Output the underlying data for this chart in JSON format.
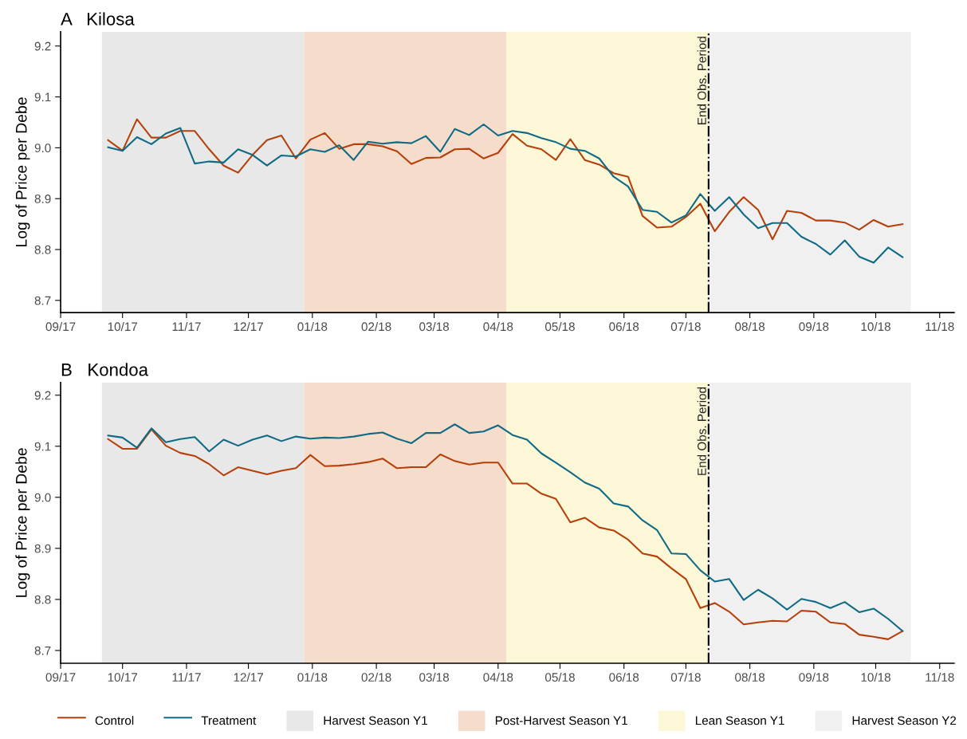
{
  "chart_data": [
    {
      "type": "line",
      "title": "A   Kilosa",
      "ylabel": "Log of Price per Debe",
      "x": [
        "2017-09-24",
        "2017-10-01",
        "2017-10-08",
        "2017-10-15",
        "2017-10-22",
        "2017-10-29",
        "2017-11-05",
        "2017-11-12",
        "2017-11-19",
        "2017-11-26",
        "2017-12-03",
        "2017-12-10",
        "2017-12-17",
        "2017-12-24",
        "2017-12-31",
        "2018-01-07",
        "2018-01-14",
        "2018-01-21",
        "2018-01-28",
        "2018-02-04",
        "2018-02-11",
        "2018-02-18",
        "2018-02-25",
        "2018-03-04",
        "2018-03-11",
        "2018-03-18",
        "2018-03-25",
        "2018-04-01",
        "2018-04-08",
        "2018-04-15",
        "2018-04-22",
        "2018-04-29",
        "2018-05-06",
        "2018-05-13",
        "2018-05-20",
        "2018-05-27",
        "2018-06-03",
        "2018-06-10",
        "2018-06-17",
        "2018-06-24",
        "2018-07-01",
        "2018-07-08",
        "2018-07-15",
        "2018-07-22",
        "2018-07-29",
        "2018-08-05",
        "2018-08-12",
        "2018-08-19",
        "2018-08-26",
        "2018-09-02",
        "2018-09-09",
        "2018-09-16",
        "2018-09-23",
        "2018-09-30",
        "2018-10-07",
        "2018-10-14"
      ],
      "series": [
        {
          "color": "#b5400b",
          "values": [
            9.015,
            8.994,
            9.056,
            9.02,
            9.02,
            9.033,
            9.033,
            8.997,
            8.965,
            8.951,
            8.986,
            9.015,
            9.024,
            8.979,
            9.016,
            9.029,
            8.998,
            9.007,
            9.007,
            9.003,
            8.993,
            8.968,
            8.98,
            8.981,
            8.997,
            8.998,
            8.979,
            8.99,
            9.027,
            9.004,
            8.997,
            8.976,
            9.017,
            8.976,
            8.967,
            8.95,
            8.943,
            8.866,
            8.843,
            8.845,
            8.864,
            8.89,
            8.836,
            8.874,
            8.903,
            8.878,
            8.82,
            8.876,
            8.872,
            8.857,
            8.857,
            8.853,
            8.839,
            8.858,
            8.845,
            8.85
          ]
        },
        {
          "color": "#0f6b85",
          "values": [
            9.001,
            8.994,
            9.021,
            9.007,
            9.028,
            9.039,
            8.969,
            8.973,
            8.971,
            8.997,
            8.986,
            8.965,
            8.985,
            8.983,
            8.997,
            8.992,
            9.005,
            8.976,
            9.012,
            9.008,
            9.011,
            9.009,
            9.023,
            8.992,
            9.037,
            9.025,
            9.046,
            9.024,
            9.033,
            9.029,
            9.019,
            9.011,
            8.998,
            8.994,
            8.979,
            8.943,
            8.924,
            8.878,
            8.874,
            8.853,
            8.867,
            8.909,
            8.876,
            8.903,
            8.869,
            8.842,
            8.852,
            8.852,
            8.825,
            8.811,
            8.79,
            8.818,
            8.786,
            8.774,
            8.804,
            8.785
          ]
        }
      ],
      "xlim": [
        "2017-09-01",
        "2018-11-08"
      ],
      "xticks": [
        {
          "value": "2017-09-01",
          "label": "09/17"
        },
        {
          "value": "2017-10-01",
          "label": "10/17"
        },
        {
          "value": "2017-11-01",
          "label": "11/17"
        },
        {
          "value": "2017-12-01",
          "label": "12/17"
        },
        {
          "value": "2018-01-01",
          "label": "01/18"
        },
        {
          "value": "2018-02-01",
          "label": "02/18"
        },
        {
          "value": "2018-03-01",
          "label": "03/18"
        },
        {
          "value": "2018-04-01",
          "label": "04/18"
        },
        {
          "value": "2018-05-01",
          "label": "05/18"
        },
        {
          "value": "2018-06-01",
          "label": "06/18"
        },
        {
          "value": "2018-07-01",
          "label": "07/18"
        },
        {
          "value": "2018-08-01",
          "label": "08/18"
        },
        {
          "value": "2018-09-01",
          "label": "09/18"
        },
        {
          "value": "2018-10-01",
          "label": "10/18"
        },
        {
          "value": "2018-11-01",
          "label": "11/18"
        }
      ],
      "ylim": [
        8.676,
        9.228
      ],
      "yticks": [
        8.7,
        8.8,
        8.9,
        {
          "value": 9.0,
          "label": "9.0"
        },
        9.1,
        9.2
      ],
      "bands": [
        {
          "axis": "x",
          "from": "2017-09-21",
          "to": "2017-12-28",
          "color": "#e8e8e8"
        },
        {
          "axis": "x",
          "from": "2017-12-28",
          "to": "2018-04-05",
          "color": "#f6dcca"
        },
        {
          "axis": "x",
          "from": "2018-04-05",
          "to": "2018-07-12",
          "color": "#fcf7d7"
        },
        {
          "axis": "x",
          "from": "2018-07-12",
          "to": "2018-10-18",
          "color": "#f0f0f0"
        }
      ],
      "ref_lines": [
        {
          "axis": "x",
          "value": "2018-07-12",
          "label": "End Obs. Period",
          "color": "#000000",
          "line_style": "dashdot"
        }
      ],
      "grid": false,
      "legend": false
    },
    {
      "type": "line",
      "title": "B   Kondoa",
      "ylabel": "Log of Price per Debe",
      "x": [
        "2017-09-24",
        "2017-10-01",
        "2017-10-08",
        "2017-10-15",
        "2017-10-22",
        "2017-10-29",
        "2017-11-05",
        "2017-11-12",
        "2017-11-19",
        "2017-11-26",
        "2017-12-03",
        "2017-12-10",
        "2017-12-17",
        "2017-12-24",
        "2017-12-31",
        "2018-01-07",
        "2018-01-14",
        "2018-01-21",
        "2018-01-28",
        "2018-02-04",
        "2018-02-11",
        "2018-02-18",
        "2018-02-25",
        "2018-03-04",
        "2018-03-11",
        "2018-03-18",
        "2018-03-25",
        "2018-04-01",
        "2018-04-08",
        "2018-04-15",
        "2018-04-22",
        "2018-04-29",
        "2018-05-06",
        "2018-05-13",
        "2018-05-20",
        "2018-05-27",
        "2018-06-03",
        "2018-06-10",
        "2018-06-17",
        "2018-06-24",
        "2018-07-01",
        "2018-07-08",
        "2018-07-15",
        "2018-07-22",
        "2018-07-29",
        "2018-08-05",
        "2018-08-12",
        "2018-08-19",
        "2018-08-26",
        "2018-09-02",
        "2018-09-09",
        "2018-09-16",
        "2018-09-23",
        "2018-09-30",
        "2018-10-07",
        "2018-10-14"
      ],
      "series": [
        {
          "name": "Control",
          "color": "#b5400b",
          "values": [
            9.114,
            9.095,
            9.095,
            9.133,
            9.101,
            9.087,
            9.081,
            9.065,
            9.043,
            9.059,
            9.052,
            9.045,
            9.052,
            9.057,
            9.083,
            9.061,
            9.062,
            9.065,
            9.069,
            9.076,
            9.057,
            9.059,
            9.059,
            9.084,
            9.071,
            9.064,
            9.068,
            9.068,
            9.027,
            9.027,
            9.007,
            8.997,
            8.951,
            8.96,
            8.941,
            8.935,
            8.917,
            8.89,
            8.884,
            8.861,
            8.84,
            8.783,
            8.793,
            8.776,
            8.751,
            8.755,
            8.758,
            8.757,
            8.778,
            8.776,
            8.755,
            8.752,
            8.731,
            8.727,
            8.722,
            8.738
          ]
        },
        {
          "name": "Treatment",
          "color": "#0f6b85",
          "values": [
            9.121,
            9.117,
            9.097,
            9.135,
            9.108,
            9.114,
            9.118,
            9.09,
            9.113,
            9.101,
            9.113,
            9.121,
            9.11,
            9.119,
            9.115,
            9.117,
            9.116,
            9.119,
            9.124,
            9.127,
            9.115,
            9.106,
            9.126,
            9.126,
            9.143,
            9.126,
            9.129,
            9.141,
            9.122,
            9.113,
            9.086,
            9.068,
            9.049,
            9.029,
            9.017,
            8.988,
            8.982,
            8.955,
            8.936,
            8.89,
            8.889,
            8.857,
            8.835,
            8.84,
            8.799,
            8.819,
            8.802,
            8.78,
            8.801,
            8.795,
            8.783,
            8.795,
            8.775,
            8.782,
            8.762,
            8.738
          ]
        }
      ],
      "xlim": [
        "2017-09-01",
        "2018-11-08"
      ],
      "xticks": [
        {
          "value": "2017-09-01",
          "label": "09/17"
        },
        {
          "value": "2017-10-01",
          "label": "10/17"
        },
        {
          "value": "2017-11-01",
          "label": "11/17"
        },
        {
          "value": "2017-12-01",
          "label": "12/17"
        },
        {
          "value": "2018-01-01",
          "label": "01/18"
        },
        {
          "value": "2018-02-01",
          "label": "02/18"
        },
        {
          "value": "2018-03-01",
          "label": "03/18"
        },
        {
          "value": "2018-04-01",
          "label": "04/18"
        },
        {
          "value": "2018-05-01",
          "label": "05/18"
        },
        {
          "value": "2018-06-01",
          "label": "06/18"
        },
        {
          "value": "2018-07-01",
          "label": "07/18"
        },
        {
          "value": "2018-08-01",
          "label": "08/18"
        },
        {
          "value": "2018-09-01",
          "label": "09/18"
        },
        {
          "value": "2018-10-01",
          "label": "10/18"
        },
        {
          "value": "2018-11-01",
          "label": "11/18"
        }
      ],
      "ylim": [
        8.675,
        9.225
      ],
      "yticks": [
        8.7,
        8.8,
        8.9,
        {
          "value": 9.0,
          "label": "9.0"
        },
        9.1,
        9.2
      ],
      "bands": [
        {
          "axis": "x",
          "from": "2017-09-21",
          "to": "2017-12-28",
          "label": "Harvest Season Y1",
          "color": "#e8e8e8"
        },
        {
          "axis": "x",
          "from": "2017-12-28",
          "to": "2018-04-05",
          "label": "Post-Harvest Season Y1",
          "color": "#f6dcca"
        },
        {
          "axis": "x",
          "from": "2018-04-05",
          "to": "2018-07-12",
          "label": "Lean Season Y1",
          "color": "#fcf7d7"
        },
        {
          "axis": "x",
          "from": "2018-07-12",
          "to": "2018-10-18",
          "label": "Harvest Season Y2",
          "color": "#f0f0f0"
        }
      ],
      "ref_lines": [
        {
          "axis": "x",
          "value": "2018-07-12",
          "label": "End Obs. Period",
          "color": "#000000",
          "line_style": "dashdot"
        }
      ],
      "grid": false,
      "legend": "bottom"
    }
  ]
}
